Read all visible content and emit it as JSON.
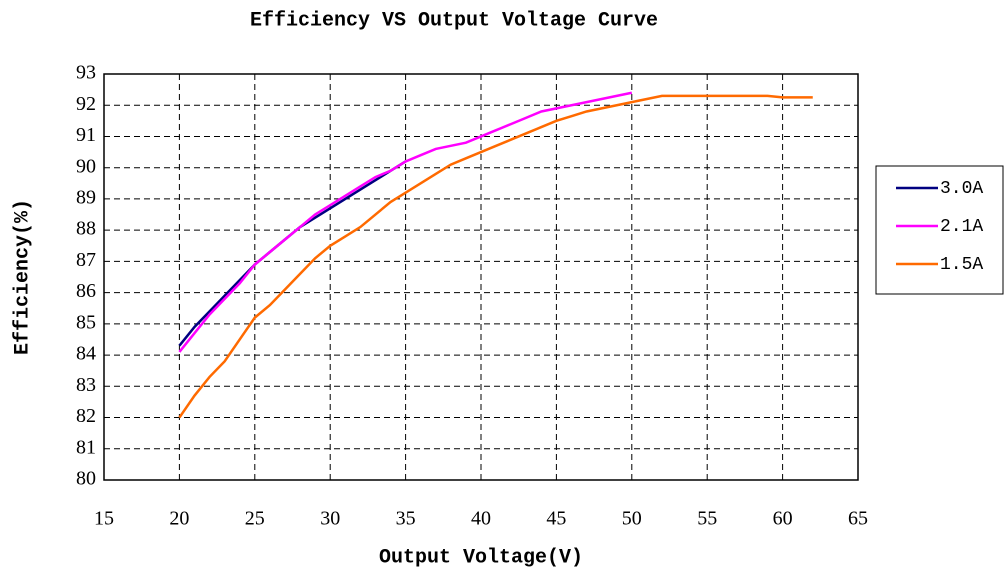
{
  "chart_data": {
    "type": "line",
    "title": "Efficiency VS Output Voltage Curve",
    "x_label": "Output Voltage(V)",
    "y_label": "Efficiency(%)",
    "x": [
      20,
      21,
      22,
      23,
      24,
      25,
      26,
      27,
      28,
      29,
      30,
      31,
      32,
      33,
      34,
      35,
      36,
      37,
      38,
      39,
      40,
      41,
      42,
      43,
      44,
      45,
      46,
      47,
      48,
      49,
      50,
      51,
      52,
      53,
      54,
      55,
      56,
      57,
      58,
      59,
      60,
      61,
      62
    ],
    "series": [
      {
        "name": "3.0A",
        "color": "#000080",
        "values": [
          84.3,
          84.9,
          85.4,
          85.9,
          86.4,
          86.9,
          87.3,
          87.7,
          88.1,
          88.4,
          88.7,
          89.0,
          89.3,
          89.6,
          89.9,
          90.2,
          null,
          null,
          null,
          null,
          null,
          null,
          null,
          null,
          null,
          null,
          null,
          null,
          null,
          null,
          null,
          null,
          null,
          null,
          null,
          null,
          null,
          null,
          null,
          null,
          null,
          null,
          null
        ]
      },
      {
        "name": "2.1A",
        "color": "#ff00ff",
        "values": [
          84.1,
          84.7,
          85.3,
          85.8,
          86.3,
          86.9,
          87.3,
          87.7,
          88.1,
          88.5,
          88.8,
          89.1,
          89.4,
          89.7,
          89.9,
          90.2,
          90.4,
          90.6,
          90.7,
          90.8,
          91.0,
          91.2,
          91.4,
          91.6,
          91.8,
          91.9,
          92.0,
          92.1,
          92.2,
          92.3,
          92.4,
          null,
          null,
          null,
          null,
          null,
          null,
          null,
          null,
          null,
          null,
          null,
          null
        ]
      },
      {
        "name": "1.5A",
        "color": "#ff6a00",
        "values": [
          82.0,
          82.7,
          83.3,
          83.8,
          84.5,
          85.2,
          85.6,
          86.1,
          86.6,
          87.1,
          87.5,
          87.8,
          88.1,
          88.5,
          88.9,
          89.2,
          89.5,
          89.8,
          90.1,
          90.3,
          90.5,
          90.7,
          90.9,
          91.1,
          91.3,
          91.5,
          91.65,
          91.8,
          91.9,
          92.0,
          92.1,
          92.2,
          92.3,
          92.3,
          92.3,
          92.3,
          92.3,
          92.3,
          92.3,
          92.3,
          92.25,
          92.25,
          92.25
        ]
      }
    ],
    "xlim": [
      15,
      65
    ],
    "xticks": [
      15,
      20,
      25,
      30,
      35,
      40,
      45,
      50,
      55,
      60,
      65
    ],
    "ylim": [
      80,
      93
    ],
    "yticks": [
      80,
      81,
      82,
      83,
      84,
      85,
      86,
      87,
      88,
      89,
      90,
      91,
      92,
      93
    ],
    "grid": true,
    "legend": "right"
  }
}
